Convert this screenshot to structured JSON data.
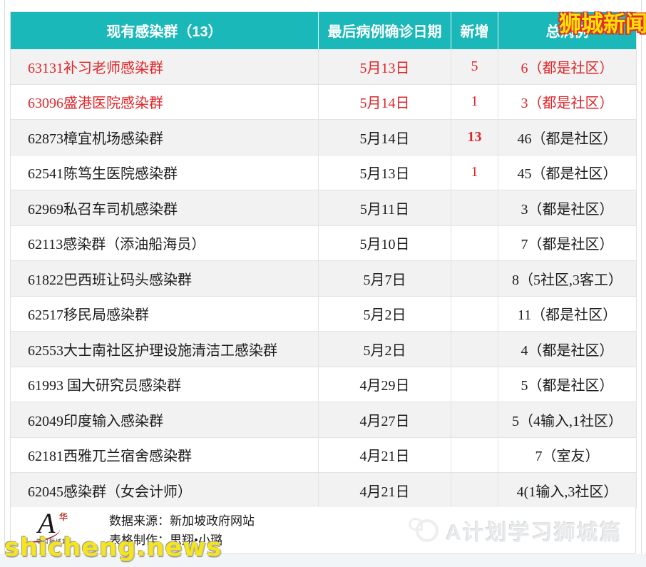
{
  "table": {
    "headers": [
      "现有感染群（13）",
      "最后病例确诊日期",
      "新增",
      "总病例"
    ],
    "rows": [
      {
        "cluster": "63131补习老师感染群",
        "date": "5月13日",
        "new": "5",
        "total": "6（都是社区）",
        "highlight": true,
        "new_bold": false
      },
      {
        "cluster": "63096盛港医院感染群",
        "date": "5月14日",
        "new": "1",
        "total": "3（都是社区）",
        "highlight": true,
        "new_bold": false
      },
      {
        "cluster": "62873樟宜机场感染群",
        "date": "5月14日",
        "new": "13",
        "total": "46（都是社区）",
        "highlight": false,
        "new_bold": true
      },
      {
        "cluster": "62541陈笃生医院感染群",
        "date": "5月13日",
        "new": "1",
        "total": "45（都是社区）",
        "highlight": false,
        "new_bold": false
      },
      {
        "cluster": "62969私召车司机感染群",
        "date": "5月11日",
        "new": "",
        "total": "3（都是社区）",
        "highlight": false,
        "new_bold": false
      },
      {
        "cluster": "62113感染群（添油船海员）",
        "date": "5月10日",
        "new": "",
        "total": "7（都是社区）",
        "highlight": false,
        "new_bold": false
      },
      {
        "cluster": "61822巴西班让码头感染群",
        "date": "5月7日",
        "new": "",
        "total": "8（5社区,3客工）",
        "highlight": false,
        "new_bold": false
      },
      {
        "cluster": "62517移民局感染群",
        "date": "5月2日",
        "new": "",
        "total": "11（都是社区）",
        "highlight": false,
        "new_bold": false
      },
      {
        "cluster": "62553大士南社区护理设施清洁工感染群",
        "date": "5月2日",
        "new": "",
        "total": "4（都是社区）",
        "highlight": false,
        "new_bold": false
      },
      {
        "cluster": "61993 国大研究员感染群",
        "date": "4月29日",
        "new": "",
        "total": "5（都是社区）",
        "highlight": false,
        "new_bold": false
      },
      {
        "cluster": "62049印度输入感染群",
        "date": "4月27日",
        "new": "",
        "total": "5（4输入,1社区）",
        "highlight": false,
        "new_bold": false
      },
      {
        "cluster": "62181西雅兀兰宿舍感染群",
        "date": "4月21日",
        "new": "",
        "total": "7（室友）",
        "highlight": false,
        "new_bold": false
      },
      {
        "cluster": "62045感染群（女会计师）",
        "date": "4月21日",
        "new": "",
        "total": "4(1输入,3社区）",
        "highlight": false,
        "new_bold": false
      }
    ]
  },
  "footer": {
    "source_line": "数据来源：新加坡政府网站",
    "maker_line": "表格制作：思翔•小璐",
    "logo_letter": "A",
    "logo_seal": "华",
    "logo_caption": "学习狮城篇"
  },
  "watermarks": {
    "top_right": "狮城新闻",
    "bottom_left": "shicheng.news",
    "footer_right": "A计划学习狮城篇"
  },
  "colors": {
    "header_bg": "#1bb8ba",
    "highlight_red": "#e0262a",
    "row_alt_bg": "#f2f2f2"
  }
}
